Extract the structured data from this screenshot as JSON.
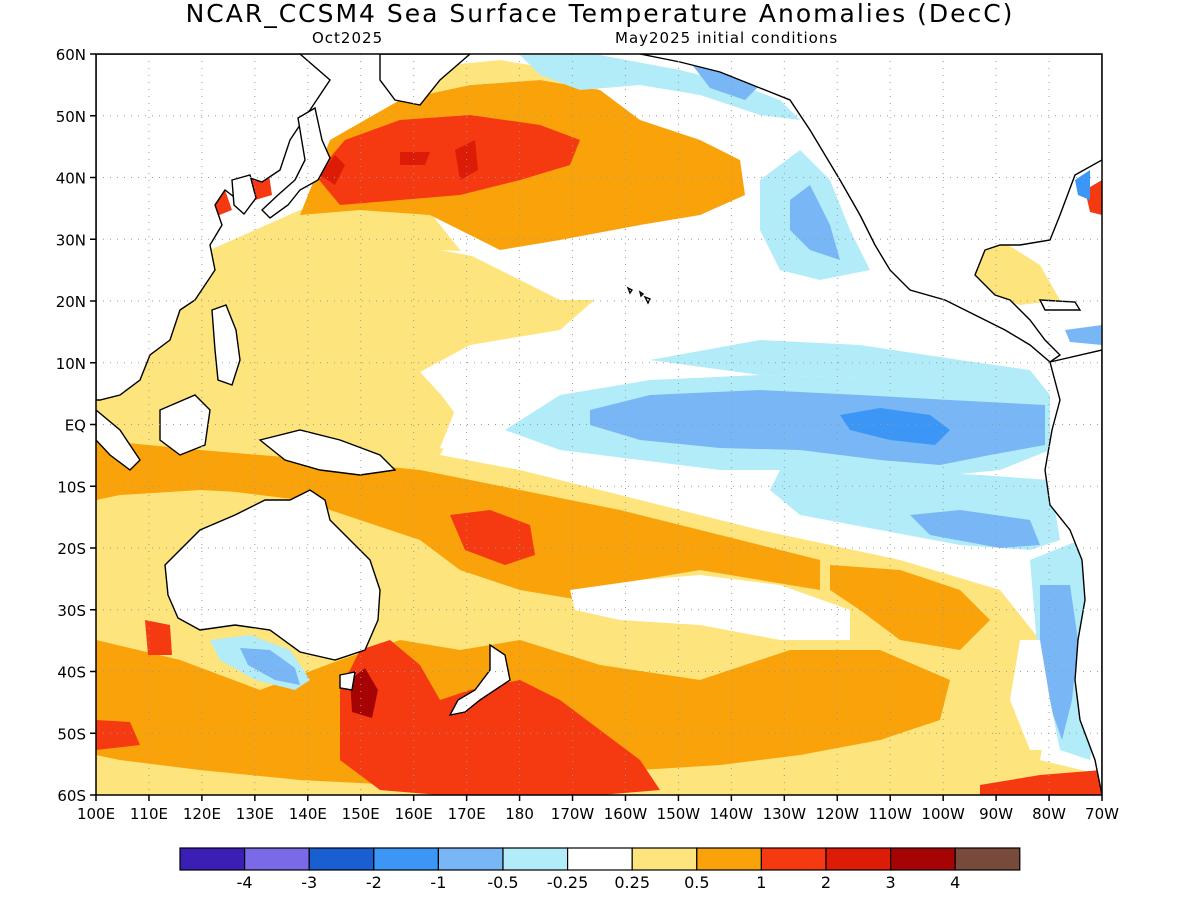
{
  "header": {
    "title": "NCAR_CCSM4 Sea Surface Temperature Anomalies (DecC)",
    "valid_month": "Oct2025",
    "init_conditions": "May2025 initial conditions"
  },
  "map": {
    "lat_labels": [
      "60N",
      "50N",
      "40N",
      "30N",
      "20N",
      "10N",
      "EQ",
      "10S",
      "20S",
      "30S",
      "40S",
      "50S",
      "60S"
    ],
    "lon_labels": [
      "100E",
      "110E",
      "120E",
      "130E",
      "140E",
      "150E",
      "160E",
      "170E",
      "180",
      "170W",
      "160W",
      "150W",
      "140W",
      "130W",
      "120W",
      "110W",
      "100W",
      "90W",
      "80W",
      "70W"
    ],
    "lat_range": [
      -60,
      60
    ],
    "lon_range": [
      100,
      290
    ],
    "grid": "dotted"
  },
  "colorbar": {
    "colors": [
      "#3b1fb5",
      "#7a6ae8",
      "#1a5fd1",
      "#3c96f5",
      "#78b6f6",
      "#b2ecf8",
      "#ffffff",
      "#fde47c",
      "#f9a20a",
      "#f53a12",
      "#dc1c07",
      "#a60404",
      "#774a3c"
    ],
    "labels": [
      "-4",
      "-3",
      "-2",
      "-1",
      "-0.5",
      "-0.25",
      "0.25",
      "0.5",
      "1",
      "2",
      "3",
      "4"
    ]
  },
  "palette": {
    "ocean": "#ffffff",
    "land": "#ffffff",
    "coast": "#000000",
    "grid": "#9a9a9a",
    "c_n05": "#b2ecf8",
    "c_n1": "#78b6f6",
    "c_n2": "#3c96f5",
    "c_p025": "#fde47c",
    "c_p05": "#f9a20a",
    "c_p1": "#f53a12",
    "c_p2": "#dc1c07",
    "c_p3": "#a60404",
    "c_p4": "#774a3c"
  }
}
